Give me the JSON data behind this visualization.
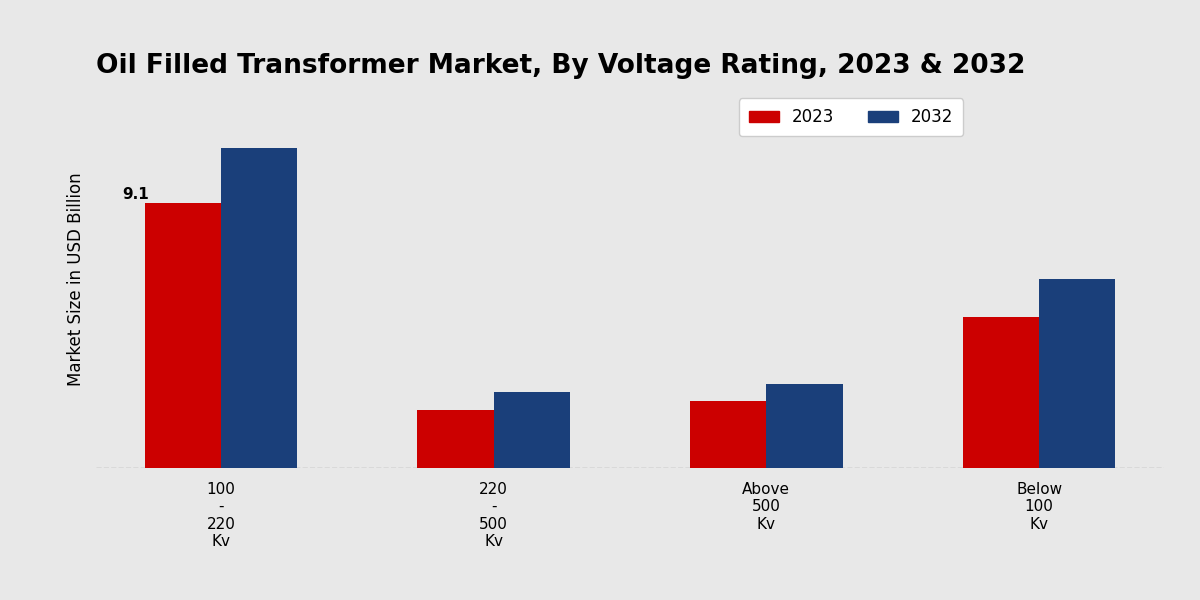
{
  "title": "Oil Filled Transformer Market, By Voltage Rating, 2023 & 2032",
  "ylabel": "Market Size in USD Billion",
  "categories": [
    "100\n-\n220\nKv",
    "220\n-\n500\nKv",
    "Above\n500\nKv",
    "Below\n100\nKv"
  ],
  "values_2023": [
    9.1,
    2.0,
    2.3,
    5.2
  ],
  "values_2032": [
    11.0,
    2.6,
    2.9,
    6.5
  ],
  "color_2023": "#cc0000",
  "color_2032": "#1a3f7a",
  "annotation_2023": "9.1",
  "ylim": [
    0,
    13
  ],
  "bar_width": 0.28,
  "background_color": "#e8e8e8",
  "title_fontsize": 19,
  "ylabel_fontsize": 12,
  "legend_fontsize": 12,
  "tick_fontsize": 11,
  "annotation_fontsize": 11,
  "legend_labels": [
    "2023",
    "2032"
  ]
}
